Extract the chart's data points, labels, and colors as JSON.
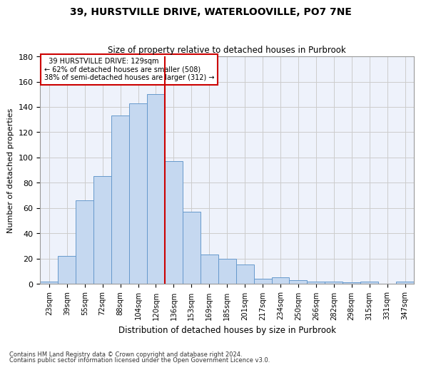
{
  "title1": "39, HURSTVILLE DRIVE, WATERLOOVILLE, PO7 7NE",
  "title2": "Size of property relative to detached houses in Purbrook",
  "xlabel": "Distribution of detached houses by size in Purbrook",
  "ylabel": "Number of detached properties",
  "categories": [
    "23sqm",
    "39sqm",
    "55sqm",
    "72sqm",
    "88sqm",
    "104sqm",
    "120sqm",
    "136sqm",
    "153sqm",
    "169sqm",
    "185sqm",
    "201sqm",
    "217sqm",
    "234sqm",
    "250sqm",
    "266sqm",
    "282sqm",
    "298sqm",
    "315sqm",
    "331sqm",
    "347sqm"
  ],
  "bar_values": [
    2,
    22,
    66,
    85,
    133,
    143,
    150,
    97,
    57,
    23,
    20,
    15,
    4,
    5,
    3,
    2,
    2,
    1,
    2,
    0,
    2
  ],
  "bar_color": "#c5d8f0",
  "bar_edge_color": "#6699cc",
  "property_bin_index": 7,
  "property_line_label": "39 HURSTVILLE DRIVE: 129sqm",
  "pct_smaller": "62% of detached houses are smaller (508)",
  "pct_larger": "38% of semi-detached houses are larger (312)",
  "vline_color": "#cc0000",
  "annotation_box_edge": "#cc0000",
  "grid_color": "#cccccc",
  "bg_color": "#eef2fb",
  "ylim": [
    0,
    180
  ],
  "footnote1": "Contains HM Land Registry data © Crown copyright and database right 2024.",
  "footnote2": "Contains public sector information licensed under the Open Government Licence v3.0."
}
